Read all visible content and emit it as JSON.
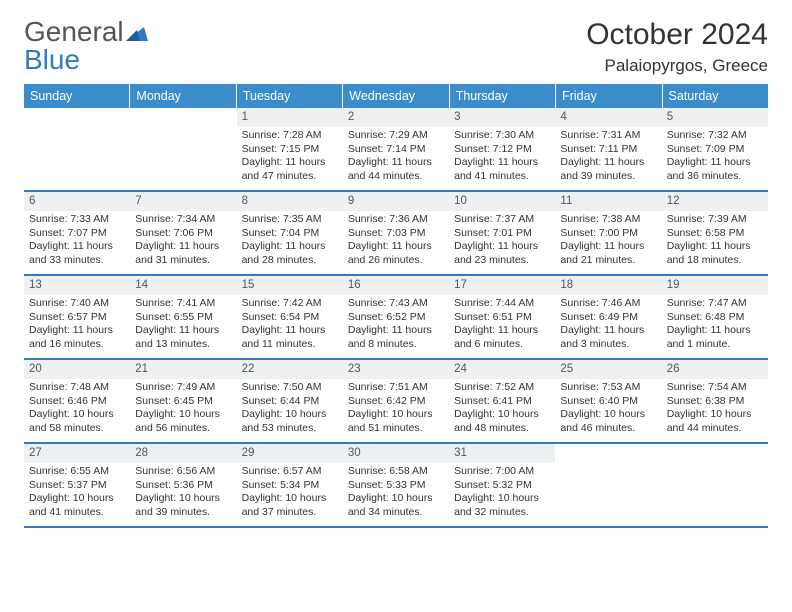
{
  "logo": {
    "text_general": "General",
    "text_blue": "Blue"
  },
  "title": "October 2024",
  "location": "Palaiopyrgos, Greece",
  "colors": {
    "header_bg": "#3b8ccb",
    "header_text": "#ffffff",
    "daynum_bg": "#eef1f4",
    "week_border": "#2f7bbf",
    "logo_blue": "#2f7bbf",
    "text": "#333333"
  },
  "day_names": [
    "Sunday",
    "Monday",
    "Tuesday",
    "Wednesday",
    "Thursday",
    "Friday",
    "Saturday"
  ],
  "weeks": [
    [
      {
        "empty": true
      },
      {
        "empty": true
      },
      {
        "num": "1",
        "sunrise": "7:28 AM",
        "sunset": "7:15 PM",
        "daylight": "11 hours and 47 minutes."
      },
      {
        "num": "2",
        "sunrise": "7:29 AM",
        "sunset": "7:14 PM",
        "daylight": "11 hours and 44 minutes."
      },
      {
        "num": "3",
        "sunrise": "7:30 AM",
        "sunset": "7:12 PM",
        "daylight": "11 hours and 41 minutes."
      },
      {
        "num": "4",
        "sunrise": "7:31 AM",
        "sunset": "7:11 PM",
        "daylight": "11 hours and 39 minutes."
      },
      {
        "num": "5",
        "sunrise": "7:32 AM",
        "sunset": "7:09 PM",
        "daylight": "11 hours and 36 minutes."
      }
    ],
    [
      {
        "num": "6",
        "sunrise": "7:33 AM",
        "sunset": "7:07 PM",
        "daylight": "11 hours and 33 minutes."
      },
      {
        "num": "7",
        "sunrise": "7:34 AM",
        "sunset": "7:06 PM",
        "daylight": "11 hours and 31 minutes."
      },
      {
        "num": "8",
        "sunrise": "7:35 AM",
        "sunset": "7:04 PM",
        "daylight": "11 hours and 28 minutes."
      },
      {
        "num": "9",
        "sunrise": "7:36 AM",
        "sunset": "7:03 PM",
        "daylight": "11 hours and 26 minutes."
      },
      {
        "num": "10",
        "sunrise": "7:37 AM",
        "sunset": "7:01 PM",
        "daylight": "11 hours and 23 minutes."
      },
      {
        "num": "11",
        "sunrise": "7:38 AM",
        "sunset": "7:00 PM",
        "daylight": "11 hours and 21 minutes."
      },
      {
        "num": "12",
        "sunrise": "7:39 AM",
        "sunset": "6:58 PM",
        "daylight": "11 hours and 18 minutes."
      }
    ],
    [
      {
        "num": "13",
        "sunrise": "7:40 AM",
        "sunset": "6:57 PM",
        "daylight": "11 hours and 16 minutes."
      },
      {
        "num": "14",
        "sunrise": "7:41 AM",
        "sunset": "6:55 PM",
        "daylight": "11 hours and 13 minutes."
      },
      {
        "num": "15",
        "sunrise": "7:42 AM",
        "sunset": "6:54 PM",
        "daylight": "11 hours and 11 minutes."
      },
      {
        "num": "16",
        "sunrise": "7:43 AM",
        "sunset": "6:52 PM",
        "daylight": "11 hours and 8 minutes."
      },
      {
        "num": "17",
        "sunrise": "7:44 AM",
        "sunset": "6:51 PM",
        "daylight": "11 hours and 6 minutes."
      },
      {
        "num": "18",
        "sunrise": "7:46 AM",
        "sunset": "6:49 PM",
        "daylight": "11 hours and 3 minutes."
      },
      {
        "num": "19",
        "sunrise": "7:47 AM",
        "sunset": "6:48 PM",
        "daylight": "11 hours and 1 minute."
      }
    ],
    [
      {
        "num": "20",
        "sunrise": "7:48 AM",
        "sunset": "6:46 PM",
        "daylight": "10 hours and 58 minutes."
      },
      {
        "num": "21",
        "sunrise": "7:49 AM",
        "sunset": "6:45 PM",
        "daylight": "10 hours and 56 minutes."
      },
      {
        "num": "22",
        "sunrise": "7:50 AM",
        "sunset": "6:44 PM",
        "daylight": "10 hours and 53 minutes."
      },
      {
        "num": "23",
        "sunrise": "7:51 AM",
        "sunset": "6:42 PM",
        "daylight": "10 hours and 51 minutes."
      },
      {
        "num": "24",
        "sunrise": "7:52 AM",
        "sunset": "6:41 PM",
        "daylight": "10 hours and 48 minutes."
      },
      {
        "num": "25",
        "sunrise": "7:53 AM",
        "sunset": "6:40 PM",
        "daylight": "10 hours and 46 minutes."
      },
      {
        "num": "26",
        "sunrise": "7:54 AM",
        "sunset": "6:38 PM",
        "daylight": "10 hours and 44 minutes."
      }
    ],
    [
      {
        "num": "27",
        "sunrise": "6:55 AM",
        "sunset": "5:37 PM",
        "daylight": "10 hours and 41 minutes."
      },
      {
        "num": "28",
        "sunrise": "6:56 AM",
        "sunset": "5:36 PM",
        "daylight": "10 hours and 39 minutes."
      },
      {
        "num": "29",
        "sunrise": "6:57 AM",
        "sunset": "5:34 PM",
        "daylight": "10 hours and 37 minutes."
      },
      {
        "num": "30",
        "sunrise": "6:58 AM",
        "sunset": "5:33 PM",
        "daylight": "10 hours and 34 minutes."
      },
      {
        "num": "31",
        "sunrise": "7:00 AM",
        "sunset": "5:32 PM",
        "daylight": "10 hours and 32 minutes."
      },
      {
        "empty": true
      },
      {
        "empty": true
      }
    ]
  ],
  "labels": {
    "sunrise": "Sunrise:",
    "sunset": "Sunset:",
    "daylight": "Daylight:"
  }
}
